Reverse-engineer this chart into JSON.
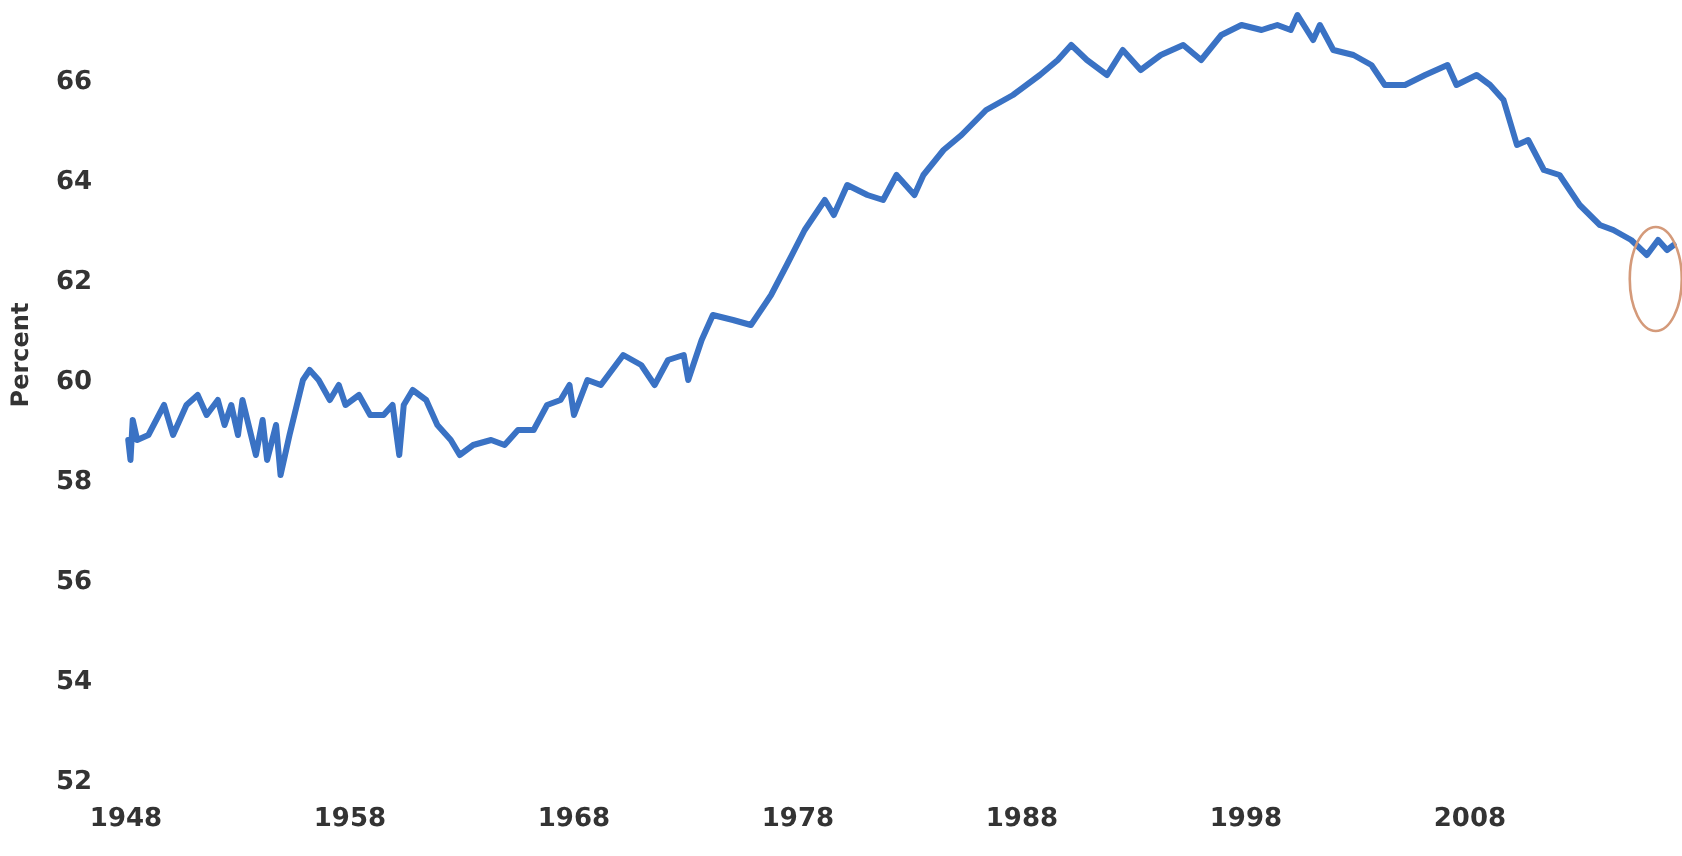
{
  "chart_data": {
    "type": "line",
    "ylabel": "Percent",
    "xlim": [
      1948,
      2017.2
    ],
    "ylim": [
      52,
      67.5
    ],
    "xticks": [
      1948,
      1958,
      1968,
      1978,
      1988,
      1998,
      2008
    ],
    "yticks": [
      {
        "value": 52,
        "label": "52"
      },
      {
        "value": 54,
        "label": "54"
      },
      {
        "value": 56,
        "label": "56"
      },
      {
        "value": 58,
        "label": "58"
      },
      {
        "value": 60,
        "label": "60"
      },
      {
        "value": 62,
        "label": "62"
      },
      {
        "value": 64,
        "label": "64"
      },
      {
        "value": 66,
        "label": "66"
      }
    ],
    "grid": false,
    "marker": "none",
    "line_style": "solid",
    "series": [
      {
        "color": "#3a72c4",
        "x": [
          1948.1,
          1948.2,
          1948.3,
          1948.5,
          1949.0,
          1949.7,
          1950.1,
          1950.7,
          1951.2,
          1951.6,
          1952.1,
          1952.4,
          1952.7,
          1953.0,
          1953.2,
          1953.8,
          1954.1,
          1954.3,
          1954.7,
          1954.9,
          1955.3,
          1955.9,
          1956.2,
          1956.6,
          1957.1,
          1957.5,
          1957.8,
          1958.4,
          1958.9,
          1959.5,
          1959.9,
          1960.2,
          1960.4,
          1960.8,
          1961.4,
          1961.9,
          1962.5,
          1962.9,
          1963.5,
          1964.3,
          1964.9,
          1965.5,
          1966.2,
          1966.8,
          1967.4,
          1967.8,
          1968.0,
          1968.6,
          1969.2,
          1970.2,
          1971.0,
          1971.6,
          1972.2,
          1972.9,
          1973.1,
          1973.7,
          1974.2,
          1975.1,
          1975.9,
          1976.8,
          1977.5,
          1978.3,
          1979.2,
          1979.6,
          1980.2,
          1981.1,
          1981.8,
          1982.4,
          1983.2,
          1983.6,
          1984.5,
          1985.3,
          1986.4,
          1987.6,
          1988.8,
          1989.6,
          1990.2,
          1990.9,
          1991.8,
          1992.5,
          1993.3,
          1994.2,
          1995.2,
          1996.0,
          1996.9,
          1997.8,
          1998.7,
          1999.4,
          2000.0,
          2000.3,
          2001.0,
          2001.3,
          2001.9,
          2002.8,
          2003.6,
          2004.2,
          2005.1,
          2006.0,
          2007.0,
          2007.4,
          2008.3,
          2008.9,
          2009.5,
          2010.1,
          2010.6,
          2011.3,
          2012.0,
          2012.9,
          2013.8,
          2014.4,
          2015.2,
          2015.9,
          2016.4,
          2016.8,
          2017.1
        ],
        "values": [
          58.8,
          58.4,
          59.2,
          58.8,
          58.9,
          59.5,
          58.9,
          59.5,
          59.7,
          59.3,
          59.6,
          59.1,
          59.5,
          58.9,
          59.6,
          58.5,
          59.2,
          58.4,
          59.1,
          58.1,
          58.9,
          60.0,
          60.2,
          60.0,
          59.6,
          59.9,
          59.5,
          59.7,
          59.3,
          59.3,
          59.5,
          58.5,
          59.5,
          59.8,
          59.6,
          59.1,
          58.8,
          58.5,
          58.7,
          58.8,
          58.7,
          59.0,
          59.0,
          59.5,
          59.6,
          59.9,
          59.3,
          60.0,
          59.9,
          60.5,
          60.3,
          59.9,
          60.4,
          60.5,
          60.0,
          60.8,
          61.3,
          61.2,
          61.1,
          61.7,
          62.3,
          63.0,
          63.6,
          63.3,
          63.9,
          63.7,
          63.6,
          64.1,
          63.7,
          64.1,
          64.6,
          64.9,
          65.4,
          65.7,
          66.1,
          66.4,
          66.7,
          66.4,
          66.1,
          66.6,
          66.2,
          66.5,
          66.7,
          66.4,
          66.9,
          67.1,
          67.0,
          67.1,
          67.0,
          67.3,
          66.8,
          67.1,
          66.6,
          66.5,
          66.3,
          65.9,
          65.9,
          66.1,
          66.3,
          65.9,
          66.1,
          65.9,
          65.6,
          64.7,
          64.8,
          64.2,
          64.1,
          63.5,
          63.1,
          63.0,
          62.8,
          62.5,
          62.8,
          62.6,
          62.7
        ]
      }
    ]
  }
}
